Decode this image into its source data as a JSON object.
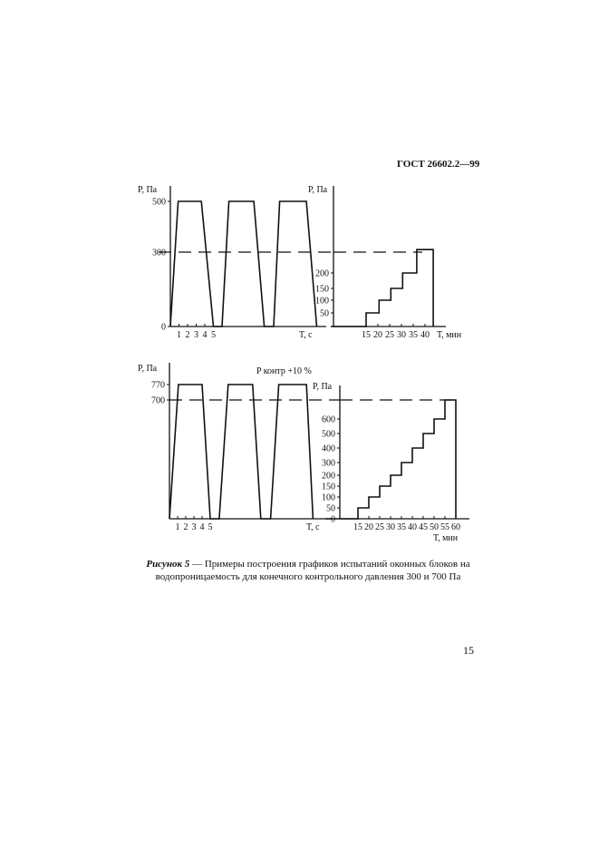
{
  "header": {
    "doc_code": "ГОСТ 26602.2—99"
  },
  "caption": {
    "label": "Рисунок 5",
    "text": " — Примеры построения графиков испытаний оконных блоков на водопроницаемость для конечного контрольного давления 300 и 700 Па"
  },
  "page_number": "15",
  "chart_data": [
    {
      "type": "line",
      "ylabel": "P, Па",
      "xlabel": "Т, с",
      "yticks": [
        0,
        300,
        500
      ],
      "xticks": [
        1,
        2,
        3,
        4,
        5
      ],
      "reference_line": 300,
      "line_color": "#111111",
      "series": [
        {
          "x": [
            0,
            0.9,
            3.6,
            5,
            6,
            6.8,
            9.7,
            10.9,
            12,
            12.7,
            15.8,
            17
          ],
          "y": [
            0,
            500,
            500,
            0,
            0,
            500,
            500,
            0,
            0,
            500,
            500,
            0
          ]
        }
      ]
    },
    {
      "type": "line",
      "ylabel": "P, Па",
      "xlabel": "Т, мин",
      "yticks": [
        50,
        100,
        150,
        200
      ],
      "xticks": [
        15,
        20,
        25,
        30,
        35,
        40
      ],
      "reference_line": 300,
      "line_color": "#111111",
      "series": [
        {
          "x": [
            0,
            15,
            15,
            20.5,
            20.5,
            25.5,
            25.5,
            30.5,
            30.5,
            36.5,
            36.5,
            43.5,
            43.5
          ],
          "y": [
            0,
            0,
            50,
            50,
            100,
            100,
            150,
            150,
            200,
            200,
            310,
            310,
            0
          ]
        }
      ]
    },
    {
      "type": "line",
      "ylabel": "P, Па",
      "xlabel": "Т, с",
      "annotation": "P контр +10 %",
      "yticks": [
        700,
        770
      ],
      "xticks": [
        1,
        2,
        3,
        4,
        5
      ],
      "reference_line": 700,
      "line_color": "#111111",
      "series": [
        {
          "x": [
            0,
            1.1,
            4,
            5,
            6.1,
            7.2,
            10.2,
            11.2,
            12.4,
            13.4,
            16.8,
            17.6
          ],
          "y": [
            0,
            770,
            770,
            0,
            0,
            770,
            770,
            0,
            0,
            770,
            770,
            0
          ]
        }
      ]
    },
    {
      "type": "line",
      "ylabel": "P, Па",
      "xlabel": "Т, мин",
      "yticks": [
        0,
        50,
        100,
        150,
        200,
        300,
        400,
        500,
        600
      ],
      "xticks": [
        15,
        20,
        25,
        30,
        35,
        40,
        45,
        50,
        55,
        60
      ],
      "reference_line": 700,
      "line_color": "#111111",
      "series": [
        {
          "x": [
            0,
            15,
            15,
            20,
            20,
            25,
            25,
            30,
            30,
            35,
            35,
            40,
            40,
            45,
            45,
            50,
            50,
            55,
            55,
            60,
            60
          ],
          "y": [
            0,
            0,
            50,
            50,
            100,
            100,
            150,
            150,
            200,
            200,
            300,
            300,
            400,
            400,
            500,
            500,
            600,
            600,
            700,
            700,
            0
          ]
        }
      ]
    }
  ]
}
